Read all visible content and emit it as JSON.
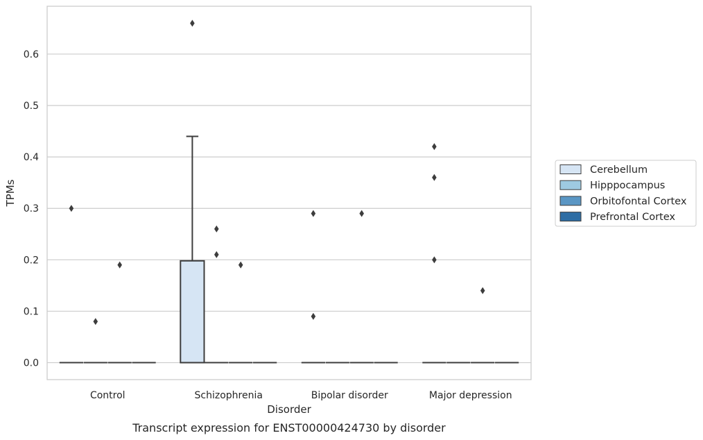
{
  "chart_data": {
    "type": "box",
    "categories": [
      "Control",
      "Schizophrenia",
      "Bipolar disorder",
      "Major depression"
    ],
    "xlabel": "Disorder",
    "ylabel": "TPMs",
    "caption": "Transcript expression for ENST00000424730 by disorder",
    "ylim": [
      -0.033,
      0.693
    ],
    "yticks": [
      "0.0",
      "0.1",
      "0.2",
      "0.3",
      "0.4",
      "0.5",
      "0.6"
    ],
    "grid": true,
    "legend_position": "right",
    "series": [
      {
        "name": "Cerebellum",
        "color": "#d6e5f4",
        "boxes": [
          {
            "min": 0,
            "q1": 0,
            "median": 0,
            "q3": 0,
            "max": 0,
            "outliers": [
              0.3
            ]
          },
          {
            "min": 0,
            "q1": 0,
            "median": 0,
            "q3": 0.198,
            "max": 0.44,
            "outliers": [
              0.66
            ]
          },
          {
            "min": 0,
            "q1": 0,
            "median": 0,
            "q3": 0,
            "max": 0,
            "outliers": [
              0.29,
              0.09
            ]
          },
          {
            "min": 0,
            "q1": 0,
            "median": 0,
            "q3": 0,
            "max": 0,
            "outliers": [
              0.42,
              0.36,
              0.2
            ]
          }
        ]
      },
      {
        "name": "Hipppocampus",
        "color": "#9ecae1",
        "boxes": [
          {
            "min": 0,
            "q1": 0,
            "median": 0,
            "q3": 0,
            "max": 0,
            "outliers": [
              0.08
            ]
          },
          {
            "min": 0,
            "q1": 0,
            "median": 0,
            "q3": 0,
            "max": 0,
            "outliers": [
              0.26,
              0.21
            ]
          },
          {
            "min": 0,
            "q1": 0,
            "median": 0,
            "q3": 0,
            "max": 0,
            "outliers": []
          },
          {
            "min": 0,
            "q1": 0,
            "median": 0,
            "q3": 0,
            "max": 0,
            "outliers": []
          }
        ]
      },
      {
        "name": "Orbitofontal Cortex",
        "color": "#5a96c4",
        "boxes": [
          {
            "min": 0,
            "q1": 0,
            "median": 0,
            "q3": 0,
            "max": 0,
            "outliers": [
              0.19
            ]
          },
          {
            "min": 0,
            "q1": 0,
            "median": 0,
            "q3": 0,
            "max": 0,
            "outliers": [
              0.19
            ]
          },
          {
            "min": 0,
            "q1": 0,
            "median": 0,
            "q3": 0,
            "max": 0,
            "outliers": [
              0.29
            ]
          },
          {
            "min": 0,
            "q1": 0,
            "median": 0,
            "q3": 0,
            "max": 0,
            "outliers": [
              0.14
            ]
          }
        ]
      },
      {
        "name": "Prefrontal Cortex",
        "color": "#2e6da4",
        "boxes": [
          {
            "min": 0,
            "q1": 0,
            "median": 0,
            "q3": 0,
            "max": 0,
            "outliers": []
          },
          {
            "min": 0,
            "q1": 0,
            "median": 0,
            "q3": 0,
            "max": 0,
            "outliers": []
          },
          {
            "min": 0,
            "q1": 0,
            "median": 0,
            "q3": 0,
            "max": 0,
            "outliers": []
          },
          {
            "min": 0,
            "q1": 0,
            "median": 0,
            "q3": 0,
            "max": 0,
            "outliers": []
          }
        ]
      }
    ]
  }
}
